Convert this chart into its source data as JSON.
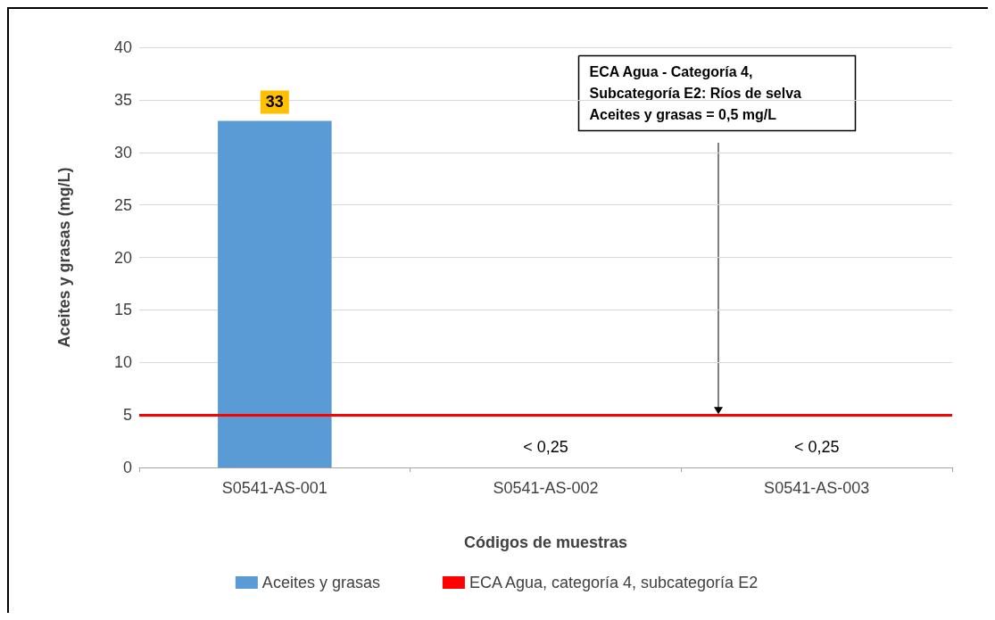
{
  "chart_data": {
    "type": "bar",
    "xlabel": "Códigos de muestras",
    "ylabel": "Aceites y grasas (mg/L)",
    "categories": [
      "S0541-AS-001",
      "S0541-AS-002",
      "S0541-AS-003"
    ],
    "series": [
      {
        "name": "Aceites y grasas",
        "color": "#5b9bd5",
        "values": [
          33,
          0,
          0
        ],
        "value_labels": [
          "33",
          "< 0,25",
          "< 0,25"
        ]
      }
    ],
    "ylim": [
      0,
      40
    ],
    "yticks": [
      0,
      5,
      10,
      15,
      20,
      25,
      30,
      35,
      40
    ],
    "grid": "y",
    "legend": "bottom",
    "ref_lines": [
      {
        "axis": "y",
        "value": 5,
        "label": "ECA Agua, categoría 4, subcategoría E2",
        "color": "#ff0000"
      }
    ],
    "annotations": [
      "ECA Agua - Categoría 4,\nSubcategoría E2: Ríos de selva\nAceites y grasas = 0,5 mg/L"
    ]
  }
}
